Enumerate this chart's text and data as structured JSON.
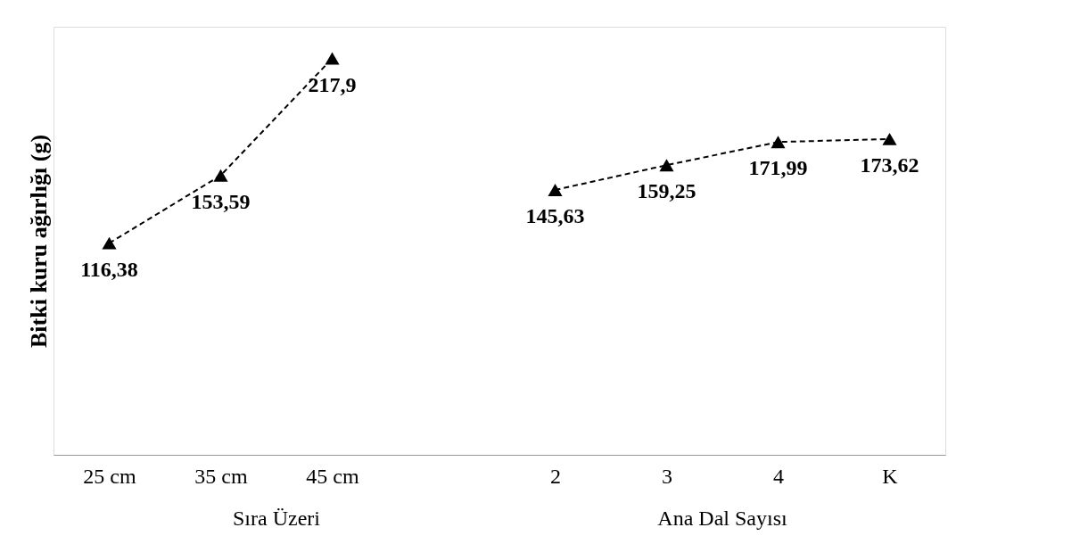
{
  "chart_data": {
    "type": "line",
    "ylabel": "Bitki kuru ağırlığı (g)",
    "categories": [
      "25 cm",
      "35 cm",
      "45 cm",
      null,
      "2",
      "3",
      "4",
      "K"
    ],
    "series": [
      {
        "color": "#000000",
        "values": [
          116.38,
          153.59,
          217.9,
          null,
          145.63,
          159.25,
          171.99,
          173.62
        ],
        "value_labels": [
          "116,38",
          "153,59",
          "217,9",
          null,
          "145,63",
          "159,25",
          "171,99",
          "173,62"
        ]
      }
    ],
    "marker": "triangle",
    "line_style": "dashed",
    "grid": false,
    "annotations": [
      "Sıra Üzeri",
      "Ana Dal Sayısı"
    ]
  }
}
